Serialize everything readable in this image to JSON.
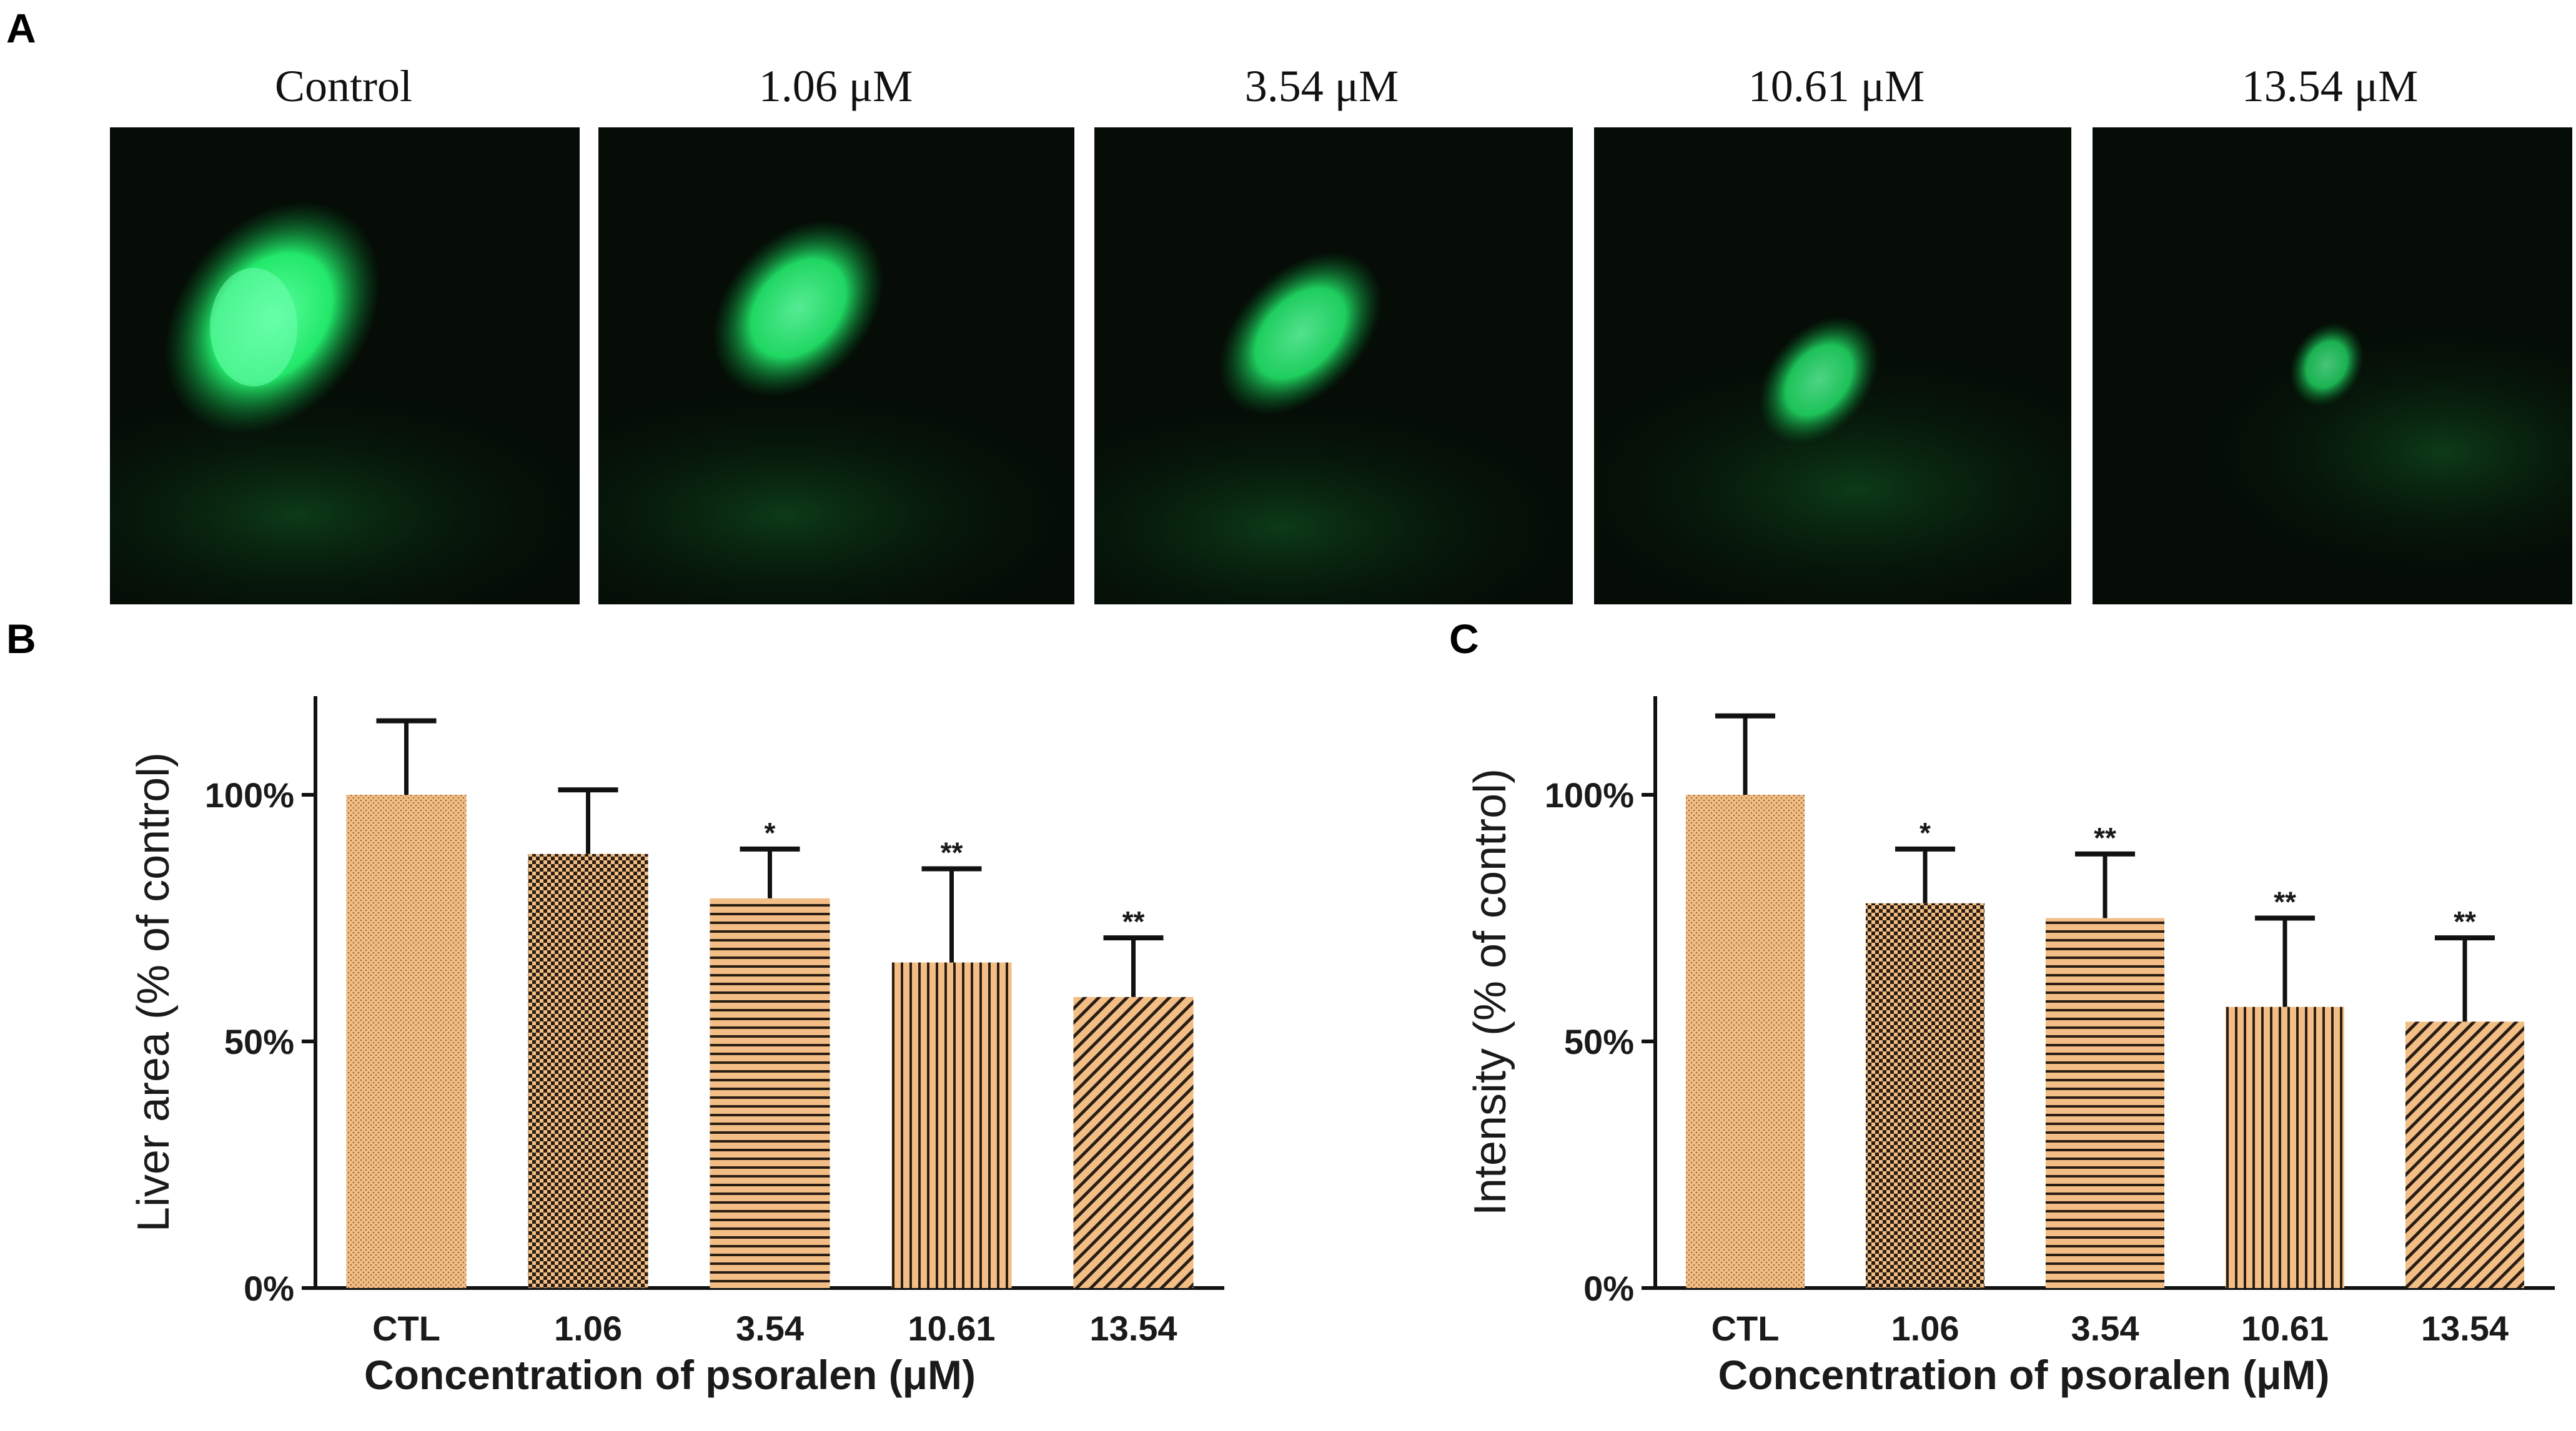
{
  "panels": {
    "a": "A",
    "b": "B",
    "c": "C"
  },
  "images": [
    {
      "label": "Control",
      "liver_brightness": 1.0
    },
    {
      "label": "1.06 μM",
      "liver_brightness": 0.85
    },
    {
      "label": "3.54 μM",
      "liver_brightness": 0.78
    },
    {
      "label": "10.61 μM",
      "liver_brightness": 0.62
    },
    {
      "label": "13.54 μM",
      "liver_brightness": 0.45
    }
  ],
  "colors": {
    "bar_fill": "#f3be85",
    "pattern": "#2a1e14",
    "fluorescence": "#22ff6a",
    "axis": "#111111"
  },
  "chart_data": [
    {
      "type": "bar",
      "panel": "B",
      "title": "",
      "xlabel": "Concentration of psoralen (μM)",
      "ylabel": "Liver area (% of control)",
      "categories": [
        "CTL",
        "1.06",
        "3.54",
        "10.61",
        "13.54"
      ],
      "values": [
        100,
        88,
        79,
        66,
        59
      ],
      "error_upper": [
        115,
        101,
        89,
        85,
        71
      ],
      "significance": [
        "",
        "",
        "*",
        "**",
        "**"
      ],
      "patterns": [
        "fine-dots",
        "checker",
        "horizontal",
        "vertical",
        "diagonal"
      ],
      "yticks": [
        "0%",
        "50%",
        "100%"
      ],
      "ylim": [
        0,
        120
      ],
      "grid": false
    },
    {
      "type": "bar",
      "panel": "C",
      "title": "",
      "xlabel": "Concentration of psoralen (μM)",
      "ylabel": "Intensity (% of control)",
      "categories": [
        "CTL",
        "1.06",
        "3.54",
        "10.61",
        "13.54"
      ],
      "values": [
        100,
        78,
        75,
        57,
        54
      ],
      "error_upper": [
        116,
        89,
        88,
        75,
        71
      ],
      "significance": [
        "",
        "*",
        "**",
        "**",
        "**"
      ],
      "patterns": [
        "fine-dots",
        "checker",
        "horizontal",
        "vertical",
        "diagonal"
      ],
      "yticks": [
        "0%",
        "50%",
        "100%"
      ],
      "ylim": [
        0,
        120
      ],
      "grid": false
    }
  ]
}
